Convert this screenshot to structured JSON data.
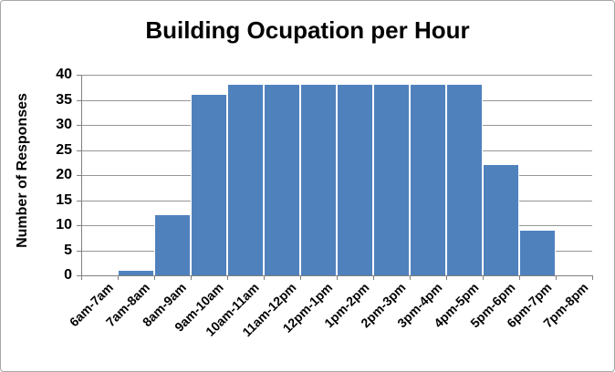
{
  "chart_data": {
    "type": "bar",
    "title": "Building Ocupation per Hour",
    "xlabel": "",
    "ylabel": "Number of Responses",
    "categories": [
      "6am-7am",
      "7am-8am",
      "8am-9am",
      "9am-10am",
      "10am-11am",
      "11am-12pm",
      "12pm-1pm",
      "1pm-2pm",
      "2pm-3pm",
      "3pm-4pm",
      "4pm-5pm",
      "5pm-6pm",
      "6pm-7pm",
      "7pm-8pm"
    ],
    "values": [
      0,
      1,
      12,
      36,
      38,
      38,
      38,
      38,
      38,
      38,
      38,
      22,
      9,
      0
    ],
    "ylim": [
      0,
      40
    ],
    "y_ticks": [
      0,
      5,
      10,
      15,
      20,
      25,
      30,
      35,
      40
    ],
    "grid": "horizontal-major",
    "legend": "none",
    "bar_color": "#4F81BD",
    "bar_border_color": "#FFFFFF",
    "gridline_color": "#969696",
    "axis_color": "#808080",
    "text_color": "#000000",
    "background_color": "#FFFFFF",
    "frame_border_color": "#A6A6A6"
  }
}
